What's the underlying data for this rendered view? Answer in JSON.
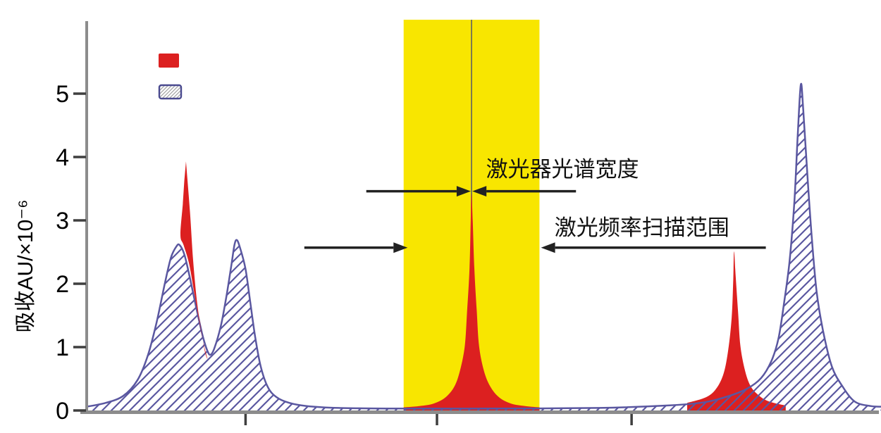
{
  "colors": {
    "red": "#dc2020",
    "yellow": "#f8e600",
    "hatch_blue": "#5a57a0",
    "axis_gray": "#8c8c8c",
    "tick_dark": "#3f3f3f",
    "annotation_text": "#111111",
    "arrow": "#222222",
    "center_line": "#6e6e5a",
    "legend_hatch_gray": "#9a9a9a",
    "legend_border_blue": "#4a4a8f"
  },
  "chart_data": {
    "type": "area",
    "title": "",
    "xlabel": "",
    "ylabel": "吸收AU/×10⁻⁶",
    "xlim": [
      0,
      10
    ],
    "ylim": [
      0,
      6.1
    ],
    "grid": false,
    "y_ticks": [
      0,
      1,
      2,
      3,
      4,
      5
    ],
    "x_ticks": [
      2.0,
      4.41,
      6.86
    ],
    "highlight_band": {
      "x0": 3.99,
      "x1": 5.7,
      "center_line_x": 4.845
    },
    "legend": {
      "position": "top-left-inside",
      "entries": [
        {
          "label": "",
          "swatch": "solid-red"
        },
        {
          "label": "",
          "swatch": "hatched-blue"
        }
      ]
    },
    "series": [
      {
        "name": "doppler-broadened-profile",
        "style": "hatched-blue",
        "points": [
          [
            0.0,
            0.06
          ],
          [
            0.24,
            0.12
          ],
          [
            0.46,
            0.23
          ],
          [
            0.64,
            0.48
          ],
          [
            0.77,
            0.87
          ],
          [
            0.88,
            1.39
          ],
          [
            0.98,
            1.98
          ],
          [
            1.06,
            2.41
          ],
          [
            1.13,
            2.59
          ],
          [
            1.17,
            2.61
          ],
          [
            1.23,
            2.46
          ],
          [
            1.3,
            2.09
          ],
          [
            1.38,
            1.62
          ],
          [
            1.46,
            1.18
          ],
          [
            1.52,
            0.94
          ],
          [
            1.56,
            0.88
          ],
          [
            1.61,
            0.99
          ],
          [
            1.69,
            1.34
          ],
          [
            1.76,
            1.81
          ],
          [
            1.82,
            2.28
          ],
          [
            1.86,
            2.61
          ],
          [
            1.89,
            2.69
          ],
          [
            1.93,
            2.57
          ],
          [
            2.0,
            2.23
          ],
          [
            2.06,
            1.7
          ],
          [
            2.12,
            1.17
          ],
          [
            2.19,
            0.7
          ],
          [
            2.28,
            0.37
          ],
          [
            2.39,
            0.21
          ],
          [
            2.55,
            0.12
          ],
          [
            2.77,
            0.07
          ],
          [
            3.17,
            0.04
          ],
          [
            3.88,
            0.03
          ],
          [
            5.12,
            0.03
          ],
          [
            6.45,
            0.04
          ],
          [
            7.34,
            0.08
          ],
          [
            7.78,
            0.13
          ],
          [
            8.09,
            0.23
          ],
          [
            8.31,
            0.34
          ],
          [
            8.49,
            0.51
          ],
          [
            8.62,
            0.78
          ],
          [
            8.71,
            1.14
          ],
          [
            8.78,
            1.7
          ],
          [
            8.85,
            2.37
          ],
          [
            8.91,
            3.31
          ],
          [
            8.95,
            4.31
          ],
          [
            8.99,
            5.14
          ],
          [
            9.02,
            4.76
          ],
          [
            9.08,
            3.59
          ],
          [
            9.13,
            2.7
          ],
          [
            9.19,
            1.87
          ],
          [
            9.27,
            1.26
          ],
          [
            9.38,
            0.7
          ],
          [
            9.51,
            0.39
          ],
          [
            9.67,
            0.14
          ],
          [
            9.87,
            0.07
          ],
          [
            10.0,
            0.06
          ]
        ]
      },
      {
        "name": "narrow-absorption-center-peak",
        "style": "solid-red",
        "closed_to_baseline": true,
        "points": [
          [
            3.99,
            0.05
          ],
          [
            4.19,
            0.07
          ],
          [
            4.37,
            0.11
          ],
          [
            4.52,
            0.21
          ],
          [
            4.63,
            0.38
          ],
          [
            4.7,
            0.63
          ],
          [
            4.76,
            1.02
          ],
          [
            4.79,
            1.58
          ],
          [
            4.82,
            2.25
          ],
          [
            4.835,
            3.0
          ],
          [
            4.845,
            3.42
          ],
          [
            4.86,
            3.0
          ],
          [
            4.88,
            2.25
          ],
          [
            4.91,
            1.58
          ],
          [
            4.94,
            1.02
          ],
          [
            5.0,
            0.63
          ],
          [
            5.08,
            0.38
          ],
          [
            5.19,
            0.21
          ],
          [
            5.34,
            0.11
          ],
          [
            5.52,
            0.07
          ],
          [
            5.7,
            0.05
          ]
        ]
      },
      {
        "name": "narrow-absorption-right-peak",
        "style": "solid-red",
        "closed_to_baseline": true,
        "points": [
          [
            7.56,
            0.12
          ],
          [
            7.78,
            0.2
          ],
          [
            7.91,
            0.32
          ],
          [
            8.01,
            0.55
          ],
          [
            8.07,
            0.9
          ],
          [
            8.12,
            1.46
          ],
          [
            8.14,
            2.07
          ],
          [
            8.15,
            2.51
          ],
          [
            8.17,
            2.12
          ],
          [
            8.2,
            1.57
          ],
          [
            8.23,
            1.02
          ],
          [
            8.29,
            0.62
          ],
          [
            8.36,
            0.38
          ],
          [
            8.45,
            0.25
          ],
          [
            8.54,
            0.17
          ],
          [
            8.65,
            0.12
          ],
          [
            8.8,
            0.08
          ]
        ]
      },
      {
        "name": "narrow-absorption-left-sliver",
        "style": "solid-red",
        "closed_polygon": true,
        "points": [
          [
            1.25,
            3.93
          ],
          [
            1.3,
            3.14
          ],
          [
            1.34,
            2.37
          ],
          [
            1.39,
            1.7
          ],
          [
            1.45,
            1.2
          ],
          [
            1.49,
            0.92
          ],
          [
            1.52,
            0.82
          ],
          [
            1.47,
            1.06
          ],
          [
            1.42,
            1.39
          ],
          [
            1.36,
            1.81
          ],
          [
            1.29,
            2.31
          ],
          [
            1.22,
            2.61
          ],
          [
            1.18,
            2.77
          ],
          [
            1.21,
            3.26
          ],
          [
            1.23,
            3.64
          ]
        ]
      }
    ],
    "annotations": [
      {
        "name": "laser-spectral-width",
        "text": "激光器光谱宽度",
        "text_x": 5.99,
        "text_y": 3.81,
        "arrow_y": 3.46,
        "arrows": [
          {
            "tail_x": 3.52,
            "tip_x": 4.835
          },
          {
            "tail_x": 6.16,
            "tip_x": 4.855
          }
        ]
      },
      {
        "name": "laser-frequency-scan-range",
        "text": "激光频率扫描范围",
        "text_x": 6.99,
        "text_y": 2.89,
        "arrow_y": 2.57,
        "arrows": [
          {
            "tail_x": 2.74,
            "tip_x": 4.04
          },
          {
            "tail_x": 8.55,
            "tip_x": 5.72
          }
        ]
      }
    ]
  }
}
